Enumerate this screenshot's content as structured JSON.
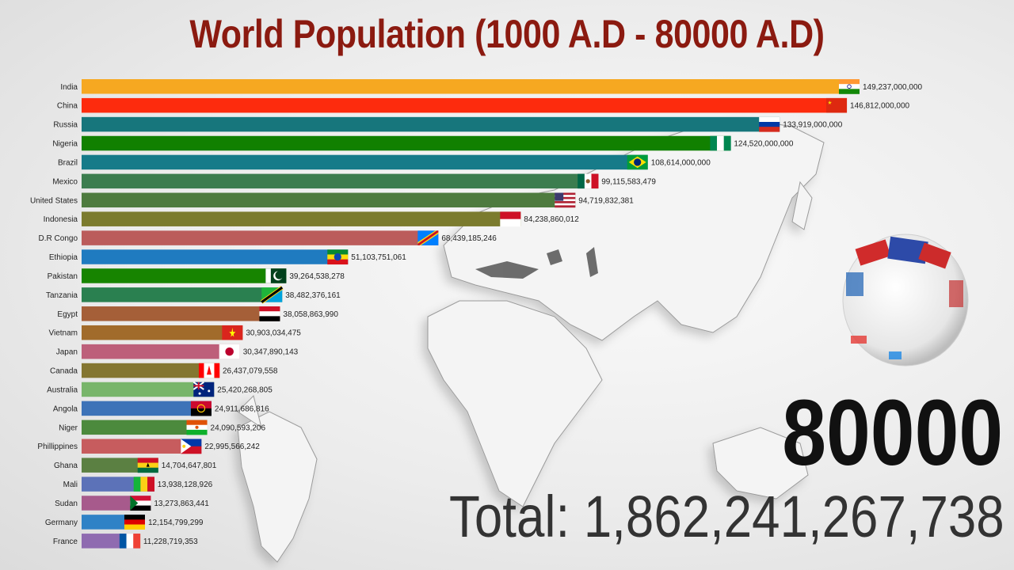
{
  "header": {
    "title": "World Population (1000 A.D - 80000 A.D)"
  },
  "counter": {
    "year": "80000",
    "total_label": "Total:",
    "total_value": "1,862,241,267,738"
  },
  "colors": {
    "title": "#8b1a10",
    "year": "#111111",
    "total": "#333333"
  },
  "chart_data": {
    "type": "bar",
    "orientation": "horizontal",
    "title": "World Population (1000 A.D - 80000 A.D)",
    "xlim": [
      0,
      149237000000
    ],
    "grid": false,
    "categories": [
      "India",
      "China",
      "Russia",
      "Nigeria",
      "Brazil",
      "Mexico",
      "United States",
      "Indonesia",
      "D.R Congo",
      "Ethiopia",
      "Pakistan",
      "Tanzania",
      "Egypt",
      "Vietnam",
      "Japan",
      "Canada",
      "Australia",
      "Angola",
      "Niger",
      "Phillippines",
      "Ghana",
      "Mali",
      "Sudan",
      "Germany",
      "France"
    ],
    "values": [
      149237000000,
      146812000000,
      133919000000,
      124520000000,
      108614000000,
      99115583479,
      94719832381,
      84238860012,
      68439185246,
      51103751061,
      39264538278,
      38482376161,
      38058863990,
      30903034475,
      30347890143,
      26437079558,
      25420268805,
      24911686816,
      24090593206,
      22995566242,
      14704647801,
      13938128926,
      13273863441,
      12154799299,
      11228719353
    ],
    "labels": [
      "149,237,000,000",
      "146,812,000,000",
      "133,919,000,000",
      "124,520,000,000",
      "108,614,000,000",
      "99,115,583,479",
      "94,719,832,381",
      "84,238,860,012",
      "68,439,185,246",
      "51,103,751,061",
      "39,264,538,278",
      "38,482,376,161",
      "38,058,863,990",
      "30,903,034,475",
      "30,347,890,143",
      "26,437,079,558",
      "25,420,268,805",
      "24,911,686,816",
      "24,090,593,206",
      "22,995,566,242",
      "14,704,647,801",
      "13,938,128,926",
      "13,273,863,441",
      "12,154,799,299",
      "11,228,719,353"
    ],
    "colors": [
      "#f6a821",
      "#fd2b0d",
      "#17767c",
      "#118000",
      "#167b89",
      "#3c7d4f",
      "#4e7b3f",
      "#7b7b2e",
      "#bb5c5b",
      "#1f7bc0",
      "#178400",
      "#2a8050",
      "#a55f38",
      "#a16b2b",
      "#bd5f7a",
      "#847631",
      "#78b56a",
      "#3d73b8",
      "#4c8a3d",
      "#c75c5e",
      "#5b8042",
      "#5c72b8",
      "#a75a8c",
      "#2f82c6",
      "#8f6bb0"
    ],
    "flags": [
      "india",
      "china",
      "russia",
      "nigeria",
      "brazil",
      "mexico",
      "usa",
      "indonesia",
      "drcongo",
      "ethiopia",
      "pakistan",
      "tanzania",
      "egypt",
      "vietnam",
      "japan",
      "canada",
      "australia",
      "angola",
      "niger",
      "philippines",
      "ghana",
      "mali",
      "sudan",
      "germany",
      "france"
    ]
  }
}
